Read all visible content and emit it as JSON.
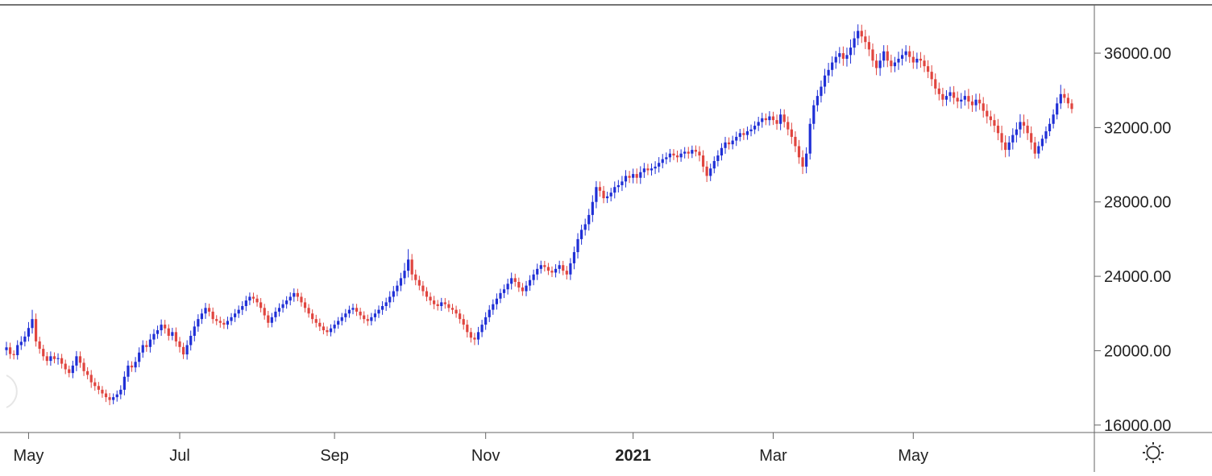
{
  "chart_data": {
    "type": "candlestick",
    "title": "",
    "xlabel": "",
    "ylabel": "",
    "ylim": [
      15600,
      38600
    ],
    "y_ticks": [
      "16000.00",
      "20000.00",
      "24000.00",
      "28000.00",
      "32000.00",
      "36000.00"
    ],
    "y_tick_values": [
      16000,
      20000,
      24000,
      28000,
      32000,
      36000
    ],
    "x_ticks": [
      {
        "label": "May",
        "index": 6,
        "bold": false
      },
      {
        "label": "Jul",
        "index": 47,
        "bold": false
      },
      {
        "label": "Sep",
        "index": 89,
        "bold": false
      },
      {
        "label": "Nov",
        "index": 130,
        "bold": false
      },
      {
        "label": "2021",
        "index": 170,
        "bold": true
      },
      {
        "label": "Mar",
        "index": 208,
        "bold": false
      },
      {
        "label": "May",
        "index": 246,
        "bold": false
      }
    ],
    "colors": {
      "up": "#1f2fd6",
      "down": "#e0453f"
    },
    "closes": [
      20180,
      19820,
      19760,
      20300,
      20480,
      20760,
      21220,
      21700,
      20500,
      20100,
      19700,
      19450,
      19700,
      19550,
      19600,
      19300,
      19000,
      18800,
      19200,
      19700,
      19350,
      18900,
      18700,
      18300,
      18100,
      17900,
      17700,
      17500,
      17350,
      17500,
      17650,
      17900,
      18600,
      19200,
      19100,
      19400,
      19900,
      20300,
      20200,
      20600,
      20900,
      21100,
      21400,
      21200,
      20800,
      21000,
      20500,
      20200,
      19800,
      20300,
      20800,
      21300,
      21700,
      22000,
      22300,
      22100,
      21700,
      21600,
      21500,
      21400,
      21600,
      21800,
      22000,
      22200,
      22400,
      22700,
      22900,
      22800,
      22600,
      22300,
      21900,
      21500,
      21800,
      22100,
      22300,
      22500,
      22700,
      22900,
      23100,
      22900,
      22600,
      22300,
      22000,
      21700,
      21500,
      21300,
      21100,
      21000,
      21200,
      21400,
      21600,
      21800,
      22000,
      22200,
      22300,
      22100,
      21900,
      21700,
      21600,
      21800,
      22000,
      22200,
      22400,
      22600,
      22900,
      23200,
      23500,
      23900,
      24300,
      24900,
      24100,
      23800,
      23500,
      23200,
      22900,
      22700,
      22500,
      22400,
      22600,
      22500,
      22300,
      22200,
      22000,
      21700,
      21400,
      21000,
      20700,
      20600,
      21000,
      21400,
      21800,
      22200,
      22500,
      22800,
      23100,
      23300,
      23600,
      23900,
      23700,
      23400,
      23200,
      23500,
      23800,
      24100,
      24400,
      24600,
      24500,
      24300,
      24200,
      24400,
      24600,
      24300,
      24100,
      24700,
      25300,
      26000,
      26500,
      26800,
      27300,
      28000,
      28800,
      28600,
      28200,
      28300,
      28500,
      28800,
      28900,
      29100,
      29400,
      29300,
      29500,
      29300,
      29600,
      29800,
      29700,
      29800,
      29900,
      30100,
      30300,
      30400,
      30600,
      30500,
      30400,
      30600,
      30700,
      30600,
      30800,
      30700,
      30500,
      29900,
      29400,
      29800,
      30200,
      30500,
      30900,
      31200,
      31100,
      31300,
      31500,
      31700,
      31600,
      31800,
      31900,
      32100,
      32300,
      32500,
      32400,
      32600,
      32400,
      32200,
      32700,
      32300,
      31900,
      31500,
      31000,
      30400,
      29900,
      30600,
      32200,
      33200,
      33700,
      34200,
      34800,
      35100,
      35500,
      35800,
      36000,
      35700,
      35900,
      36300,
      36800,
      37200,
      36900,
      36600,
      36200,
      35600,
      35200,
      35600,
      36100,
      35600,
      35300,
      35500,
      35700,
      35900,
      36100,
      35800,
      35500,
      35700,
      35600,
      35300,
      35000,
      34600,
      34100,
      33800,
      33500,
      33700,
      33900,
      33600,
      33400,
      33500,
      33700,
      33400,
      33200,
      33500,
      33300,
      32900,
      32600,
      32400,
      32100,
      31700,
      31200,
      30800,
      31200,
      31600,
      31900,
      32300,
      32100,
      31700,
      31200,
      30600,
      31000,
      31400,
      31800,
      32200,
      32700,
      33300,
      33800,
      33600,
      33300,
      33000
    ],
    "highs_pad": [
      300,
      250,
      200,
      260,
      300,
      280,
      320,
      500,
      300,
      250,
      220,
      230,
      260,
      210,
      260,
      230,
      220,
      200,
      260,
      280,
      260,
      240,
      210,
      260,
      230,
      220,
      200,
      210,
      220,
      200,
      210,
      240,
      290,
      270,
      230,
      260,
      280,
      260,
      240,
      300,
      260,
      250,
      280,
      260,
      220,
      230,
      250,
      240,
      230,
      260,
      280,
      300,
      260,
      250,
      270,
      230,
      220,
      210,
      230,
      210,
      230,
      220,
      240,
      230,
      260,
      250,
      230,
      220,
      210,
      230,
      220,
      240,
      230,
      230,
      250,
      240,
      230,
      240,
      250,
      230,
      220,
      230,
      210,
      220,
      230,
      230,
      210,
      200,
      220,
      230,
      210,
      230,
      240,
      220,
      230,
      220,
      210,
      220,
      240,
      230,
      220,
      230,
      260,
      250,
      300,
      280,
      260,
      290,
      420,
      560,
      300,
      260,
      230,
      240,
      220,
      230,
      250,
      230,
      240,
      230,
      210,
      220,
      220,
      230,
      250,
      260,
      230,
      260,
      280,
      260,
      270,
      250,
      260,
      280,
      230,
      260,
      270,
      300,
      240,
      230,
      240,
      250,
      260,
      260,
      280,
      240,
      230,
      220,
      230,
      250,
      240,
      230,
      260,
      280,
      300,
      320,
      280,
      300,
      330,
      360,
      320,
      300,
      260,
      250,
      260,
      300,
      280,
      300,
      310,
      270,
      290,
      300,
      320,
      300,
      250,
      270,
      290,
      310,
      280,
      260,
      250,
      240,
      260,
      230,
      250,
      260,
      230,
      240,
      300,
      280,
      300,
      260,
      250,
      280,
      260,
      300,
      270,
      260,
      280,
      230,
      260,
      250,
      260,
      240,
      280,
      300,
      260,
      280,
      250,
      300,
      300,
      280,
      300,
      360,
      300,
      330,
      380,
      340,
      300,
      280,
      320,
      330,
      360,
      380,
      330,
      320,
      330,
      360,
      400,
      440,
      380,
      350,
      330,
      360,
      340,
      320,
      360,
      400,
      330,
      330,
      320,
      300,
      380,
      340,
      330,
      300,
      320,
      330,
      360,
      300,
      320,
      350,
      310,
      320,
      340,
      310,
      300,
      330,
      340,
      360,
      300,
      380,
      340,
      320,
      330,
      340,
      360,
      310,
      330,
      360,
      400,
      380,
      340,
      360,
      380,
      420,
      400,
      350,
      360
    ],
    "lows_pad": [
      280,
      260,
      230,
      240,
      260,
      250,
      260,
      300,
      280,
      260,
      230,
      240,
      260,
      230,
      300,
      260,
      260,
      230,
      280,
      300,
      270,
      260,
      240,
      300,
      250,
      240,
      230,
      260,
      280,
      230,
      240,
      260,
      300,
      270,
      240,
      260,
      290,
      280,
      260,
      300,
      270,
      260,
      300,
      280,
      250,
      240,
      280,
      300,
      250,
      280,
      290,
      300,
      280,
      260,
      290,
      250,
      240,
      230,
      260,
      230,
      240,
      230,
      260,
      240,
      280,
      270,
      250,
      240,
      230,
      240,
      230,
      260,
      240,
      240,
      260,
      250,
      240,
      260,
      270,
      240,
      230,
      240,
      220,
      240,
      250,
      240,
      220,
      210,
      230,
      250,
      220,
      240,
      260,
      230,
      240,
      230,
      220,
      230,
      260,
      240,
      230,
      240,
      270,
      260,
      300,
      290,
      270,
      300,
      330,
      360,
      320,
      280,
      250,
      260,
      240,
      250,
      270,
      240,
      260,
      240,
      220,
      230,
      230,
      240,
      270,
      290,
      260,
      300,
      290,
      270,
      280,
      260,
      270,
      290,
      240,
      270,
      280,
      310,
      250,
      240,
      250,
      270,
      280,
      280,
      300,
      250,
      240,
      230,
      240,
      260,
      250,
      240,
      270,
      300,
      320,
      340,
      300,
      310,
      340,
      380,
      340,
      320,
      270,
      260,
      270,
      310,
      290,
      310,
      320,
      280,
      300,
      310,
      330,
      310,
      260,
      280,
      300,
      320,
      290,
      270,
      260,
      250,
      270,
      240,
      260,
      270,
      240,
      250,
      320,
      300,
      330,
      280,
      260,
      290,
      270,
      310,
      280,
      270,
      290,
      240,
      270,
      260,
      270,
      250,
      290,
      310,
      270,
      290,
      260,
      320,
      340,
      300,
      320,
      380,
      320,
      350,
      400,
      360,
      320,
      300,
      340,
      350,
      380,
      400,
      350,
      340,
      350,
      380,
      420,
      460,
      400,
      370,
      350,
      380,
      360,
      340,
      380,
      420,
      350,
      350,
      340,
      320,
      400,
      360,
      350,
      320,
      340,
      350,
      380,
      320,
      340,
      370,
      330,
      340,
      360,
      330,
      320,
      350,
      360,
      380,
      320,
      400,
      360,
      340,
      350,
      360,
      380,
      330,
      350,
      380,
      420,
      400,
      360,
      380,
      400,
      440,
      420,
      370,
      380
    ]
  }
}
